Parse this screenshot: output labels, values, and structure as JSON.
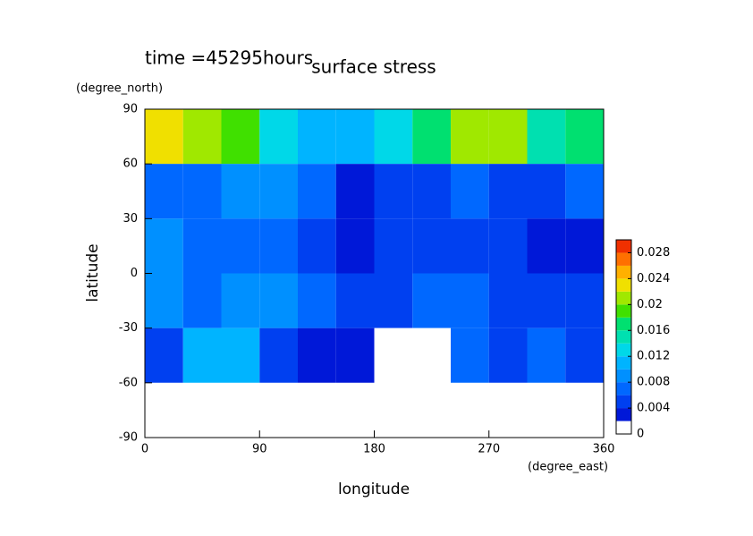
{
  "chart_data": {
    "type": "contour",
    "title": "surface stress",
    "subtitle": "time =45295hours",
    "x_label": "longitude",
    "x_units": "(degree_east)",
    "y_label": "latitude",
    "y_units": "(degree_north)",
    "x": [
      15,
      45,
      75,
      105,
      135,
      165,
      195,
      225,
      255,
      285,
      315,
      345
    ],
    "y": [
      75,
      45,
      15,
      -15,
      -45,
      -75
    ],
    "z": [
      [
        0.022,
        0.02,
        0.018,
        0.012,
        0.01,
        0.01,
        0.012,
        0.016,
        0.02,
        0.02,
        0.014,
        0.016
      ],
      [
        0.006,
        0.006,
        0.008,
        0.008,
        0.006,
        0.002,
        0.004,
        0.004,
        0.006,
        0.004,
        0.004,
        0.006
      ],
      [
        0.008,
        0.006,
        0.006,
        0.006,
        0.004,
        0.002,
        0.004,
        0.004,
        0.004,
        0.004,
        0.002,
        0.002
      ],
      [
        0.008,
        0.006,
        0.008,
        0.008,
        0.006,
        0.004,
        0.004,
        0.006,
        0.006,
        0.004,
        0.004,
        0.004
      ],
      [
        0.004,
        0.01,
        0.01,
        0.004,
        0.002,
        0.002,
        0.001,
        0.001,
        0.006,
        0.004,
        0.006,
        0.004
      ],
      [
        0.001,
        0.001,
        0.001,
        0.001,
        0.001,
        0,
        0,
        0,
        0,
        0,
        0,
        0
      ]
    ],
    "xlim": [
      0,
      360
    ],
    "xticks": [
      0,
      90,
      180,
      270,
      360
    ],
    "ylim": [
      -90,
      90
    ],
    "yticks": [
      -90,
      -60,
      -30,
      0,
      30,
      60,
      90
    ],
    "levels": [
      0,
      0.002,
      0.004,
      0.006,
      0.008,
      0.01,
      0.012,
      0.014,
      0.016,
      0.018,
      0.02,
      0.022,
      0.024,
      0.026,
      0.028,
      0.03
    ],
    "colors": [
      "#ffffff",
      "#0018d8",
      "#0040f0",
      "#0068ff",
      "#0090ff",
      "#00b4ff",
      "#00d8e8",
      "#00e0b0",
      "#00e070",
      "#40e000",
      "#a0e800",
      "#f0e000",
      "#ffb000",
      "#ff7000",
      "#f03000"
    ],
    "colorbar_ticks": [
      0,
      0.004,
      0.008,
      0.012,
      0.016,
      0.02,
      0.024,
      0.028
    ]
  }
}
